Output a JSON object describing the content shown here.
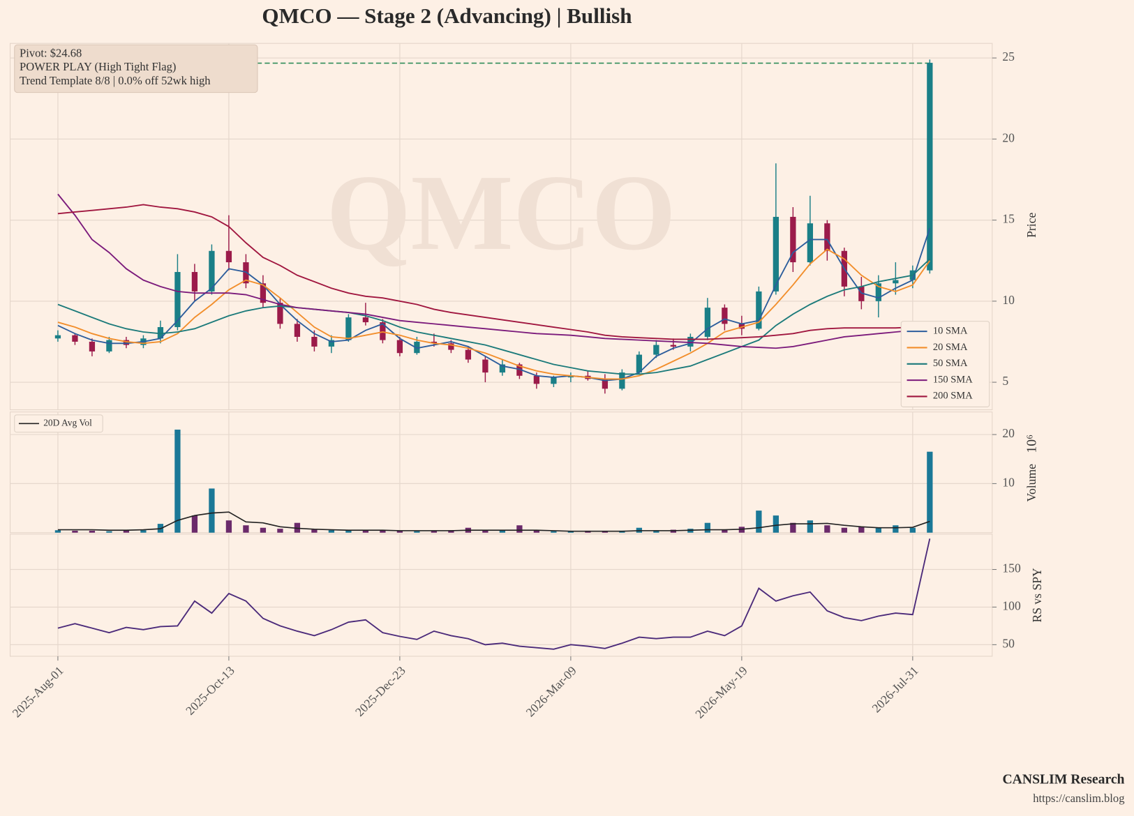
{
  "title": "QMCO  —  Stage 2 (Advancing)  |  Bullish",
  "footer": {
    "brand": "CANSLIM Research",
    "url": "https://canslim.blog"
  },
  "chart_data": [
    {
      "type": "candlestick",
      "watermark": "QMCO",
      "ylabel": "Price",
      "annotations": [
        "Pivot: $24.68",
        "POWER PLAY (High Tight Flag)",
        "Trend Template 8/8  |  0.0% off 52wk high"
      ],
      "pivot": 24.68,
      "pivot_color": "#2e8b57",
      "up_color": "#1a7f87",
      "down_color": "#9b1b4a",
      "open": [
        7.7,
        7.9,
        7.5,
        6.9,
        7.6,
        7.3,
        7.7,
        8.4,
        11.8,
        10.6,
        13.1,
        12.4,
        11.1,
        9.9,
        8.6,
        7.8,
        7.2,
        7.6,
        9.0,
        8.7,
        7.6,
        6.8,
        7.5,
        7.4,
        7.0,
        6.4,
        5.6,
        6.1,
        5.4,
        4.9,
        5.3,
        5.4,
        5.2,
        4.6,
        5.6,
        6.7,
        7.3,
        7.2,
        7.8,
        9.6,
        8.6,
        8.3,
        10.6,
        15.2,
        12.4,
        14.8,
        13.1,
        10.9,
        10.0,
        11.1,
        11.3,
        11.9
      ],
      "high": [
        8.2,
        8.0,
        7.7,
        7.8,
        7.8,
        7.9,
        8.8,
        12.9,
        12.3,
        13.5,
        15.3,
        12.9,
        11.6,
        10.2,
        8.9,
        8.2,
        7.9,
        9.2,
        9.9,
        8.9,
        7.8,
        7.8,
        8.0,
        7.6,
        7.2,
        6.6,
        6.4,
        6.2,
        5.6,
        5.4,
        5.6,
        5.7,
        5.5,
        5.8,
        6.9,
        7.6,
        7.7,
        8.0,
        10.2,
        9.8,
        9.1,
        10.9,
        18.5,
        15.8,
        16.5,
        15.0,
        13.3,
        11.5,
        11.6,
        12.4,
        12.2,
        24.9
      ],
      "low": [
        7.5,
        7.3,
        6.6,
        6.8,
        7.1,
        7.1,
        7.4,
        8.2,
        10.0,
        10.4,
        11.9,
        10.8,
        9.6,
        8.3,
        7.5,
        6.9,
        6.8,
        7.5,
        8.5,
        7.4,
        6.6,
        6.7,
        7.2,
        6.8,
        6.2,
        5.0,
        5.4,
        5.2,
        4.6,
        4.7,
        5.0,
        5.1,
        4.3,
        4.5,
        5.5,
        6.5,
        7.0,
        6.9,
        7.6,
        8.2,
        7.9,
        8.2,
        10.4,
        11.8,
        12.2,
        12.5,
        10.3,
        9.5,
        9.0,
        10.4,
        10.8,
        11.7
      ],
      "close": [
        7.9,
        7.5,
        6.9,
        7.6,
        7.3,
        7.7,
        8.4,
        11.8,
        10.6,
        13.1,
        12.4,
        11.1,
        9.9,
        8.6,
        7.8,
        7.2,
        7.6,
        9.0,
        8.7,
        7.6,
        6.8,
        7.5,
        7.4,
        7.0,
        6.4,
        5.6,
        6.1,
        5.4,
        4.9,
        5.3,
        5.4,
        5.2,
        4.6,
        5.6,
        6.7,
        7.3,
        7.2,
        7.8,
        9.6,
        8.6,
        8.3,
        10.6,
        15.2,
        12.4,
        14.8,
        13.1,
        10.9,
        10.0,
        11.1,
        11.3,
        11.9,
        24.7
      ],
      "series": [
        {
          "name": "10 SMA",
          "color": "#2c5d9c",
          "values": [
            8.5,
            8.0,
            7.6,
            7.4,
            7.4,
            7.5,
            7.7,
            8.8,
            10.0,
            10.8,
            12.0,
            11.8,
            11.0,
            9.8,
            8.8,
            8.0,
            7.5,
            7.6,
            8.2,
            8.6,
            7.7,
            7.1,
            7.3,
            7.5,
            7.2,
            6.6,
            6.0,
            5.8,
            5.4,
            5.3,
            5.4,
            5.3,
            5.1,
            5.2,
            5.6,
            6.6,
            7.1,
            7.4,
            8.3,
            8.9,
            8.6,
            8.8,
            11.0,
            13.0,
            13.8,
            13.8,
            12.0,
            10.5,
            10.2,
            10.8,
            11.3,
            14.5
          ]
        },
        {
          "name": "20 SMA",
          "color": "#f28e2b",
          "values": [
            8.7,
            8.4,
            8.0,
            7.7,
            7.5,
            7.4,
            7.5,
            8.0,
            9.0,
            9.8,
            10.7,
            11.3,
            11.0,
            10.2,
            9.3,
            8.4,
            7.8,
            7.7,
            7.9,
            8.1,
            7.9,
            7.6,
            7.4,
            7.3,
            7.1,
            6.8,
            6.4,
            6.0,
            5.7,
            5.5,
            5.4,
            5.3,
            5.2,
            5.2,
            5.4,
            5.8,
            6.3,
            6.8,
            7.4,
            8.1,
            8.4,
            8.7,
            9.8,
            11.0,
            12.3,
            13.2,
            12.6,
            11.6,
            10.9,
            10.6,
            11.0,
            12.5
          ]
        },
        {
          "name": "50 SMA",
          "color": "#1b7a7a",
          "values": [
            9.8,
            9.4,
            9.0,
            8.6,
            8.3,
            8.1,
            8.0,
            8.1,
            8.3,
            8.7,
            9.1,
            9.4,
            9.6,
            9.7,
            9.6,
            9.5,
            9.4,
            9.3,
            9.1,
            8.8,
            8.4,
            8.1,
            7.9,
            7.7,
            7.5,
            7.3,
            7.0,
            6.7,
            6.4,
            6.1,
            5.9,
            5.7,
            5.6,
            5.5,
            5.5,
            5.6,
            5.8,
            6.0,
            6.4,
            6.8,
            7.2,
            7.6,
            8.5,
            9.2,
            9.8,
            10.3,
            10.7,
            10.9,
            11.2,
            11.4,
            11.6,
            12.6
          ]
        },
        {
          "name": "150 SMA",
          "color": "#7b1a7b",
          "values": [
            16.6,
            15.3,
            13.8,
            13.0,
            12.0,
            11.3,
            10.9,
            10.6,
            10.5,
            10.5,
            10.5,
            10.4,
            10.1,
            9.8,
            9.6,
            9.5,
            9.4,
            9.3,
            9.2,
            9.0,
            8.8,
            8.7,
            8.6,
            8.5,
            8.4,
            8.3,
            8.2,
            8.1,
            8.0,
            7.95,
            7.9,
            7.8,
            7.7,
            7.65,
            7.6,
            7.55,
            7.5,
            7.45,
            7.4,
            7.3,
            7.2,
            7.15,
            7.1,
            7.2,
            7.4,
            7.6,
            7.8,
            7.9,
            8.0,
            8.1,
            8.2,
            8.3
          ]
        },
        {
          "name": "200 SMA",
          "color": "#a0163f",
          "values": [
            15.4,
            15.5,
            15.6,
            15.7,
            15.8,
            15.95,
            15.8,
            15.7,
            15.5,
            15.2,
            14.6,
            13.6,
            12.7,
            12.2,
            11.6,
            11.2,
            10.8,
            10.5,
            10.3,
            10.2,
            10.0,
            9.8,
            9.5,
            9.3,
            9.15,
            9.0,
            8.85,
            8.7,
            8.55,
            8.4,
            8.25,
            8.1,
            7.9,
            7.8,
            7.75,
            7.7,
            7.65,
            7.65,
            7.65,
            7.7,
            7.75,
            7.8,
            7.9,
            8.0,
            8.2,
            8.3,
            8.35,
            8.35,
            8.35,
            8.35,
            8.4,
            8.4
          ]
        }
      ],
      "ylim": [
        3.3,
        25.9
      ],
      "yticks": [
        5,
        10,
        15,
        20,
        25
      ],
      "grid": true,
      "legend": "lower right"
    },
    {
      "type": "bar",
      "ylabel": "Volume",
      "ylabel_multiplier": "10⁶",
      "up_color": "#1b7897",
      "down_color": "#6b2a6b",
      "values": [
        0.5,
        0.4,
        0.4,
        0.3,
        0.4,
        0.5,
        1.8,
        21.0,
        3.5,
        9.0,
        2.5,
        1.5,
        1.0,
        0.8,
        2.0,
        0.6,
        0.5,
        0.4,
        0.6,
        0.5,
        0.4,
        0.3,
        0.4,
        0.5,
        1.0,
        0.5,
        0.6,
        1.5,
        0.4,
        0.3,
        0.3,
        0.4,
        0.3,
        0.4,
        1.0,
        0.5,
        0.6,
        0.8,
        2.0,
        0.6,
        1.2,
        4.5,
        3.5,
        2.0,
        2.5,
        1.5,
        1.0,
        1.2,
        1.0,
        1.5,
        1.0,
        16.5
      ],
      "series": [
        {
          "name": "20D Avg Vol",
          "color": "#222222",
          "values": [
            0.6,
            0.6,
            0.6,
            0.5,
            0.5,
            0.6,
            0.8,
            2.5,
            3.5,
            4.0,
            4.2,
            2.2,
            2.0,
            1.2,
            0.9,
            0.7,
            0.6,
            0.5,
            0.5,
            0.5,
            0.4,
            0.4,
            0.4,
            0.4,
            0.5,
            0.5,
            0.5,
            0.5,
            0.5,
            0.4,
            0.3,
            0.3,
            0.3,
            0.3,
            0.4,
            0.4,
            0.4,
            0.5,
            0.6,
            0.6,
            0.7,
            1.0,
            1.5,
            1.8,
            1.8,
            1.9,
            1.5,
            1.2,
            1.0,
            1.0,
            1.1,
            2.3
          ]
        }
      ],
      "ylim": [
        0,
        24.6
      ],
      "yticks": [
        10,
        20
      ],
      "grid": true,
      "legend": "upper left"
    },
    {
      "type": "line",
      "ylabel": "RS vs SPY",
      "color": "#4b2a7a",
      "categories": [
        "2025-Aug-01",
        null,
        null,
        null,
        null,
        null,
        null,
        null,
        null,
        null,
        "2025-Oct-13",
        null,
        null,
        null,
        null,
        null,
        null,
        null,
        null,
        null,
        "2025-Dec-23",
        null,
        null,
        null,
        null,
        null,
        null,
        null,
        null,
        null,
        "2026-Mar-09",
        null,
        null,
        null,
        null,
        null,
        null,
        null,
        null,
        null,
        "2026-May-19",
        null,
        null,
        null,
        null,
        null,
        null,
        null,
        null,
        null,
        "2026-Jul-31",
        null
      ],
      "values": [
        72,
        78,
        72,
        66,
        73,
        70,
        74,
        75,
        108,
        92,
        118,
        108,
        85,
        75,
        68,
        62,
        70,
        80,
        83,
        66,
        61,
        57,
        68,
        62,
        58,
        50,
        52,
        48,
        46,
        44,
        50,
        48,
        45,
        52,
        60,
        58,
        60,
        60,
        68,
        62,
        75,
        125,
        108,
        115,
        120,
        95,
        86,
        82,
        88,
        92,
        90,
        191
      ],
      "ylim": [
        34.6,
        197
      ],
      "yticks": [
        50,
        100,
        150
      ],
      "grid": true
    }
  ]
}
